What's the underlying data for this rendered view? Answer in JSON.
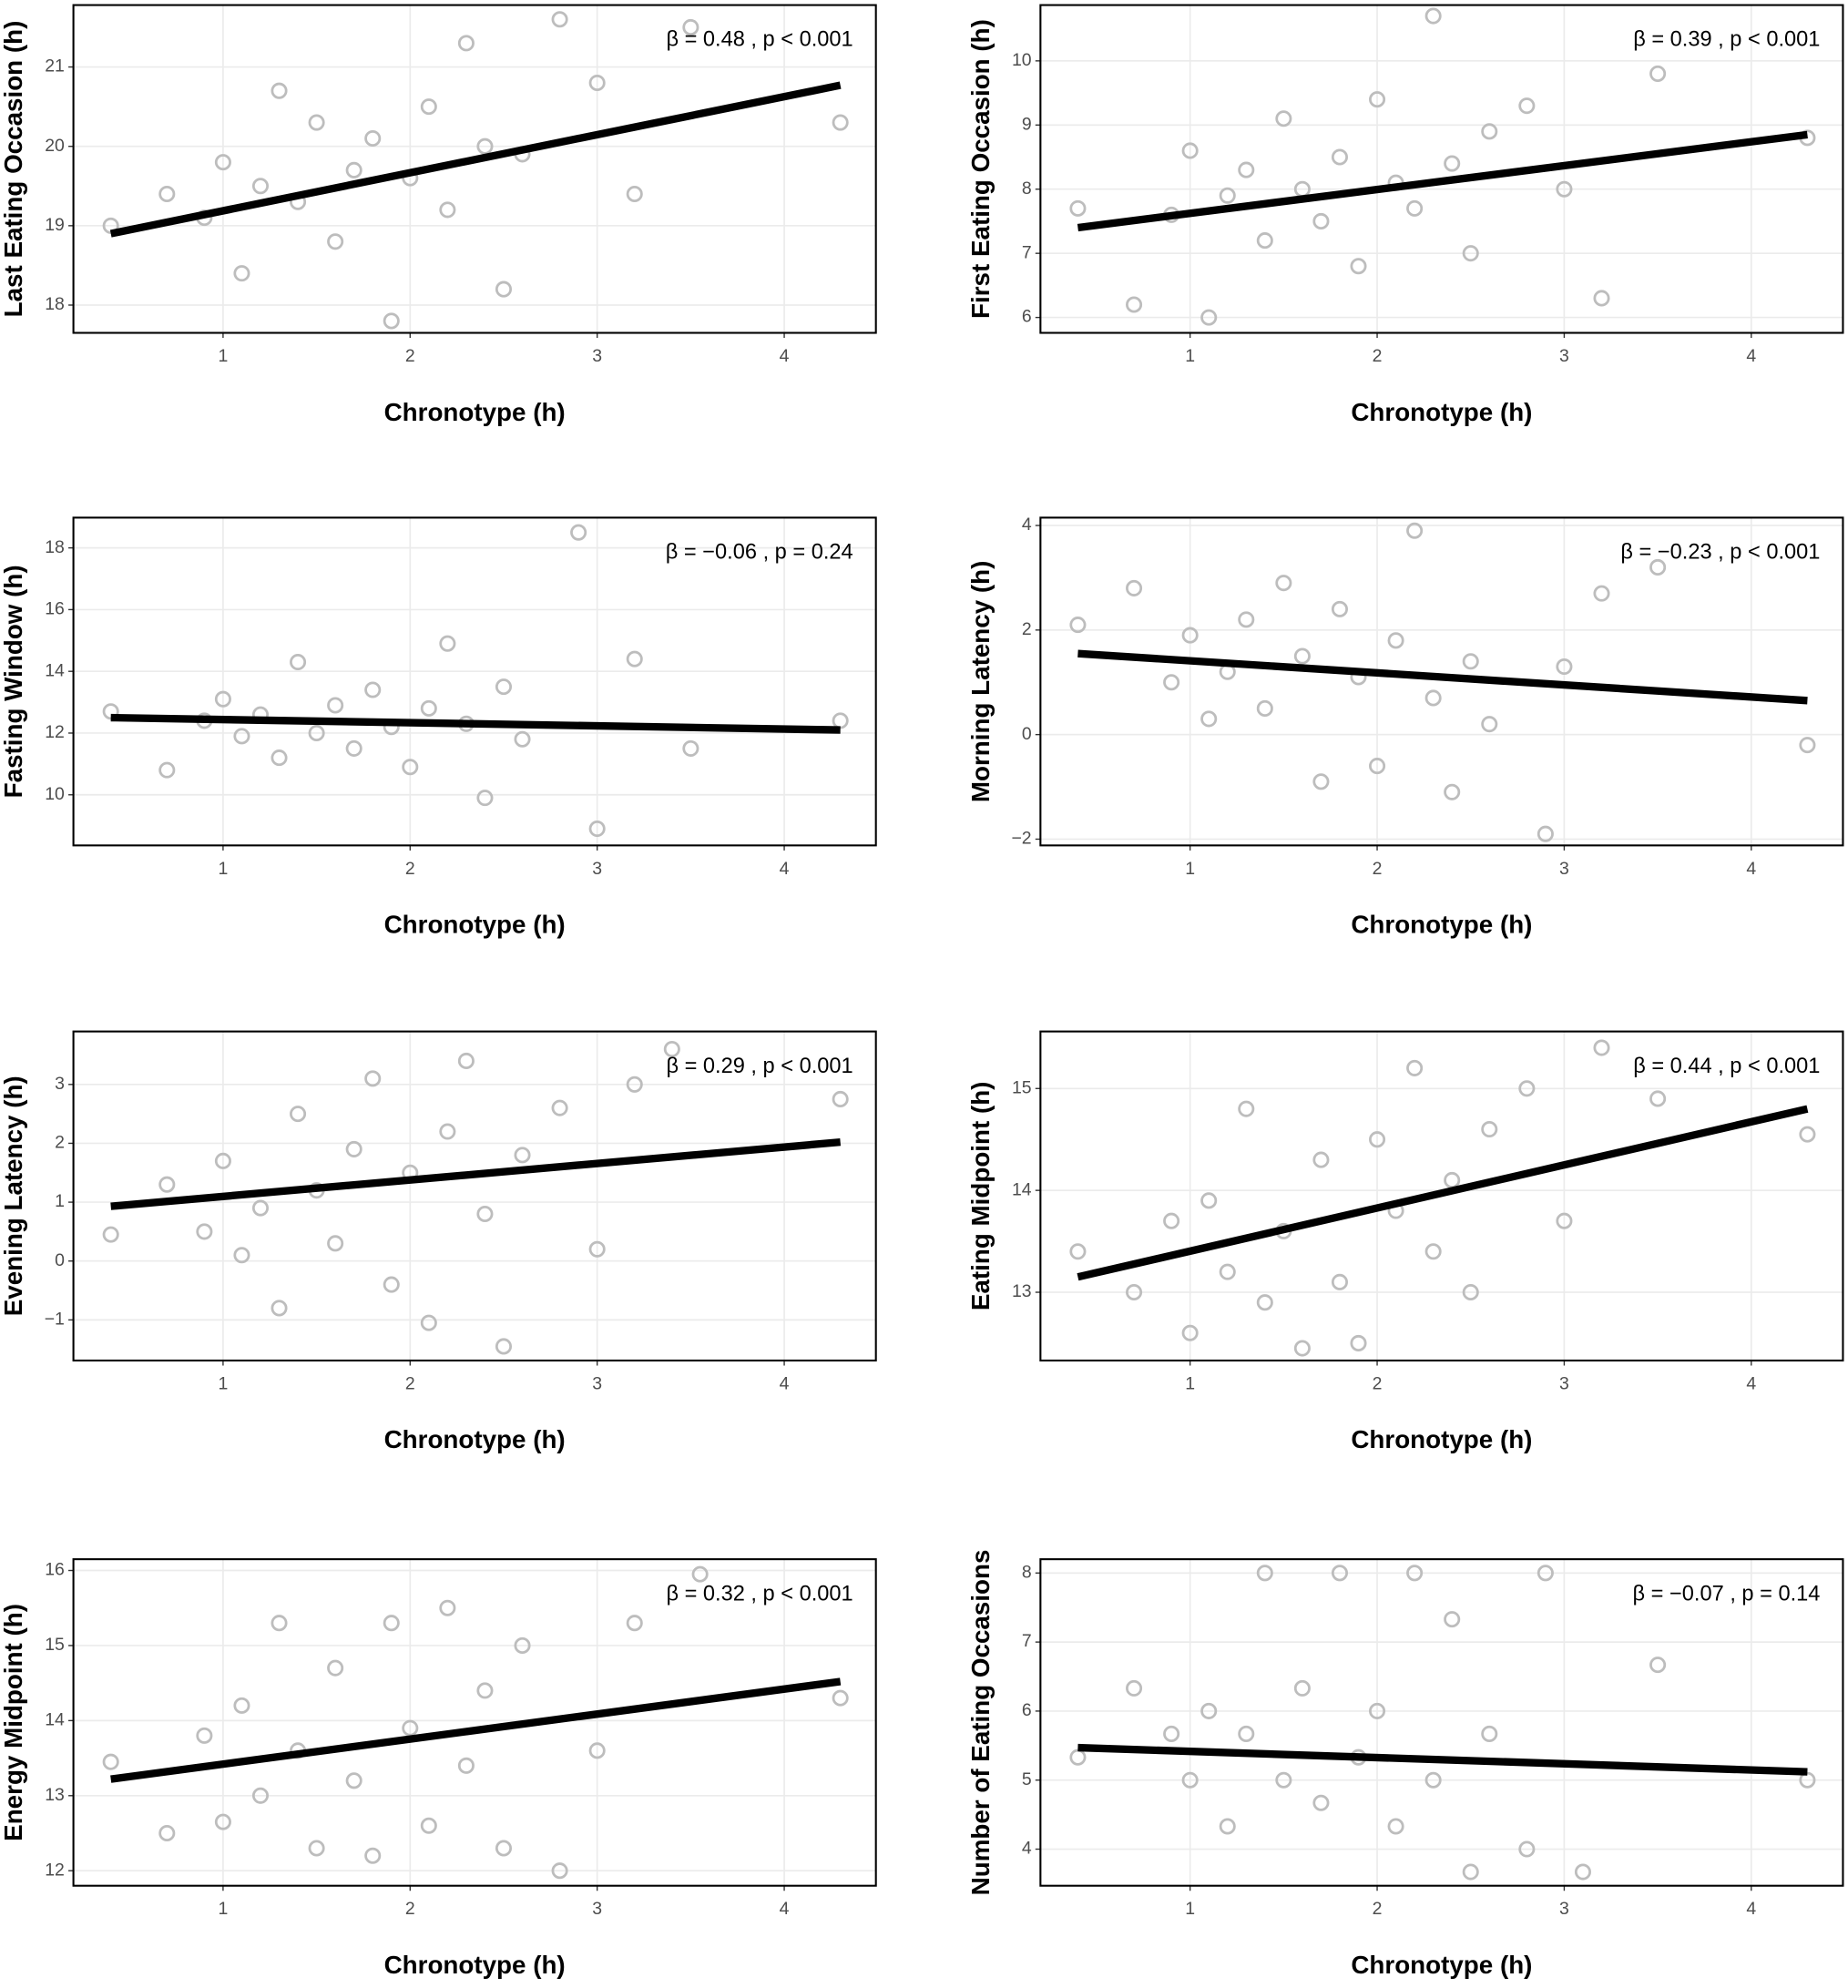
{
  "chart_data": [
    {
      "type": "scatter",
      "y_label": "Last Eating Occasion (h)",
      "x_label": "Chronotype (h)",
      "annotation": "β = 0.48 , p < 0.001",
      "x": [
        0.4,
        0.7,
        0.9,
        1.0,
        1.1,
        1.2,
        1.3,
        1.4,
        1.5,
        1.6,
        1.7,
        1.8,
        1.9,
        2.0,
        2.1,
        2.2,
        2.3,
        2.4,
        2.5,
        2.6,
        2.8,
        3.0,
        3.2,
        3.5,
        4.3
      ],
      "y": [
        19.0,
        19.4,
        19.1,
        19.8,
        18.4,
        19.5,
        20.7,
        19.3,
        20.3,
        18.8,
        19.7,
        20.1,
        17.8,
        19.6,
        20.5,
        19.2,
        21.3,
        20.0,
        18.2,
        19.9,
        21.6,
        20.8,
        19.4,
        21.5,
        20.3
      ],
      "color": "#bdbdbd",
      "fit": {
        "x": [
          0.4,
          4.3
        ],
        "y": [
          18.9,
          20.77
        ],
        "color": "#000000"
      },
      "xlim": [
        0.2,
        4.49
      ],
      "ylim": [
        17.65,
        21.78
      ],
      "xticks": [
        1,
        2,
        3,
        4
      ],
      "yticks": [
        18,
        19,
        20,
        21
      ],
      "grid": true
    },
    {
      "type": "scatter",
      "y_label": "First Eating Occasion (h)",
      "x_label": "Chronotype (h)",
      "annotation": "β = 0.39 , p < 0.001",
      "x": [
        0.4,
        0.7,
        0.9,
        1.0,
        1.1,
        1.2,
        1.3,
        1.4,
        1.5,
        1.6,
        1.7,
        1.8,
        1.9,
        2.0,
        2.1,
        2.2,
        2.3,
        2.4,
        2.5,
        2.6,
        2.8,
        3.0,
        3.2,
        3.5,
        4.3
      ],
      "y": [
        7.7,
        6.2,
        7.6,
        8.6,
        6.0,
        7.9,
        8.3,
        7.2,
        9.1,
        8.0,
        7.5,
        8.5,
        6.8,
        9.4,
        8.1,
        7.7,
        10.7,
        8.4,
        7.0,
        8.9,
        9.3,
        8.0,
        6.3,
        9.8,
        8.8
      ],
      "color": "#bdbdbd",
      "fit": {
        "x": [
          0.4,
          4.3
        ],
        "y": [
          7.4,
          8.85
        ],
        "color": "#000000"
      },
      "xlim": [
        0.2,
        4.49
      ],
      "ylim": [
        5.76,
        10.87
      ],
      "xticks": [
        1,
        2,
        3,
        4
      ],
      "yticks": [
        6,
        7,
        8,
        9,
        10
      ],
      "grid": true
    },
    {
      "type": "scatter",
      "y_label": "Fasting Window (h)",
      "x_label": "Chronotype (h)",
      "annotation": "β = −0.06 , p = 0.24",
      "x": [
        0.4,
        0.7,
        0.9,
        1.0,
        1.1,
        1.2,
        1.3,
        1.4,
        1.5,
        1.6,
        1.7,
        1.8,
        1.9,
        2.0,
        2.1,
        2.2,
        2.3,
        2.4,
        2.5,
        2.6,
        2.9,
        3.0,
        3.2,
        3.5,
        4.3
      ],
      "y": [
        12.7,
        10.8,
        12.4,
        13.1,
        11.9,
        12.6,
        11.2,
        14.3,
        12.0,
        12.9,
        11.5,
        13.4,
        12.2,
        10.9,
        12.8,
        14.9,
        12.3,
        9.9,
        13.5,
        11.8,
        18.5,
        8.9,
        14.4,
        11.5,
        12.4
      ],
      "color": "#bdbdbd",
      "fit": {
        "x": [
          0.4,
          4.3
        ],
        "y": [
          12.5,
          12.1
        ],
        "color": "#000000"
      },
      "xlim": [
        0.2,
        4.49
      ],
      "ylim": [
        8.36,
        18.98
      ],
      "xticks": [
        1,
        2,
        3,
        4
      ],
      "yticks": [
        10,
        12,
        14,
        16,
        18
      ],
      "grid": true
    },
    {
      "type": "scatter",
      "y_label": "Morning Latency (h)",
      "x_label": "Chronotype (h)",
      "annotation": "β = −0.23 , p < 0.001",
      "x": [
        0.4,
        0.7,
        0.9,
        1.0,
        1.1,
        1.2,
        1.3,
        1.4,
        1.5,
        1.6,
        1.7,
        1.8,
        1.9,
        2.0,
        2.1,
        2.2,
        2.3,
        2.4,
        2.5,
        2.6,
        2.9,
        3.0,
        3.2,
        3.5,
        4.3
      ],
      "y": [
        2.1,
        2.8,
        1.0,
        1.9,
        0.3,
        1.2,
        2.2,
        0.5,
        2.9,
        1.5,
        -0.9,
        2.4,
        1.1,
        -0.6,
        1.8,
        3.9,
        0.7,
        -1.1,
        1.4,
        0.2,
        -1.9,
        1.3,
        2.7,
        3.2,
        -0.2
      ],
      "color": "#bdbdbd",
      "fit": {
        "x": [
          0.4,
          4.3
        ],
        "y": [
          1.55,
          0.65
        ],
        "color": "#000000"
      },
      "xlim": [
        0.2,
        4.49
      ],
      "ylim": [
        -2.12,
        4.15
      ],
      "xticks": [
        1,
        2,
        3,
        4
      ],
      "yticks": [
        {
          "value": -2,
          "label": "−2"
        },
        0,
        2,
        4
      ],
      "grid": true
    },
    {
      "type": "scatter",
      "y_label": "Evening Latency (h)",
      "x_label": "Chronotype (h)",
      "annotation": "β = 0.29 , p < 0.001",
      "x": [
        0.4,
        0.7,
        0.9,
        1.0,
        1.1,
        1.2,
        1.3,
        1.4,
        1.5,
        1.6,
        1.7,
        1.8,
        1.9,
        2.0,
        2.1,
        2.2,
        2.3,
        2.4,
        2.5,
        2.6,
        2.8,
        3.0,
        3.2,
        3.4,
        4.3
      ],
      "y": [
        0.45,
        1.3,
        0.5,
        1.7,
        0.1,
        0.9,
        -0.8,
        2.5,
        1.2,
        0.3,
        1.9,
        3.1,
        -0.4,
        1.5,
        -1.05,
        2.2,
        3.4,
        0.8,
        -1.45,
        1.8,
        2.6,
        0.2,
        3.0,
        3.6,
        2.75
      ],
      "color": "#bdbdbd",
      "fit": {
        "x": [
          0.4,
          4.3
        ],
        "y": [
          0.93,
          2.02
        ],
        "color": "#000000"
      },
      "xlim": [
        0.2,
        4.49
      ],
      "ylim": [
        -1.69,
        3.9
      ],
      "xticks": [
        1,
        2,
        3,
        4
      ],
      "yticks": [
        {
          "value": -1,
          "label": "−1"
        },
        0,
        1,
        2,
        3
      ],
      "grid": true
    },
    {
      "type": "scatter",
      "y_label": "Eating Midpoint (h)",
      "x_label": "Chronotype (h)",
      "annotation": "β = 0.44 , p < 0.001",
      "x": [
        0.4,
        0.7,
        0.9,
        1.0,
        1.1,
        1.2,
        1.3,
        1.4,
        1.5,
        1.6,
        1.7,
        1.8,
        1.9,
        2.0,
        2.1,
        2.2,
        2.3,
        2.4,
        2.5,
        2.6,
        2.8,
        3.0,
        3.2,
        3.5,
        4.3
      ],
      "y": [
        13.4,
        13.0,
        13.7,
        12.6,
        13.9,
        13.2,
        14.8,
        12.9,
        13.6,
        12.45,
        14.3,
        13.1,
        12.5,
        14.5,
        13.8,
        15.2,
        13.4,
        14.1,
        13.0,
        14.6,
        15.0,
        13.7,
        15.4,
        14.9,
        14.55
      ],
      "color": "#bdbdbd",
      "fit": {
        "x": [
          0.4,
          4.3
        ],
        "y": [
          13.15,
          14.8
        ],
        "color": "#000000"
      },
      "xlim": [
        0.2,
        4.49
      ],
      "ylim": [
        12.33,
        15.56
      ],
      "xticks": [
        1,
        2,
        3,
        4
      ],
      "yticks": [
        13,
        14,
        15
      ],
      "grid": true
    },
    {
      "type": "scatter",
      "y_label": "Energy Midpoint (h)",
      "x_label": "Chronotype (h)",
      "annotation": "β = 0.32 , p < 0.001",
      "x": [
        0.4,
        0.7,
        0.9,
        1.0,
        1.1,
        1.2,
        1.3,
        1.4,
        1.5,
        1.6,
        1.7,
        1.8,
        1.9,
        2.0,
        2.1,
        2.2,
        2.3,
        2.4,
        2.5,
        2.6,
        2.8,
        3.0,
        3.2,
        3.55,
        4.3
      ],
      "y": [
        13.45,
        12.5,
        13.8,
        12.65,
        14.2,
        13.0,
        15.3,
        13.6,
        12.3,
        14.7,
        13.2,
        12.2,
        15.3,
        13.9,
        12.6,
        15.5,
        13.4,
        14.4,
        12.3,
        15.0,
        12.0,
        13.6,
        15.3,
        15.95,
        14.3
      ],
      "color": "#bdbdbd",
      "fit": {
        "x": [
          0.4,
          4.3
        ],
        "y": [
          13.22,
          14.52
        ],
        "color": "#000000"
      },
      "xlim": [
        0.2,
        4.49
      ],
      "ylim": [
        11.8,
        16.15
      ],
      "xticks": [
        1,
        2,
        3,
        4
      ],
      "yticks": [
        12,
        13,
        14,
        15,
        16
      ],
      "grid": true
    },
    {
      "type": "scatter",
      "y_label": "Number of Eating Occasions",
      "x_label": "Chronotype (h)",
      "annotation": "β = −0.07 , p = 0.14",
      "x": [
        0.4,
        0.7,
        0.9,
        1.0,
        1.1,
        1.2,
        1.3,
        1.4,
        1.5,
        1.6,
        1.7,
        1.8,
        1.9,
        2.0,
        2.1,
        2.2,
        2.3,
        2.4,
        2.5,
        2.6,
        2.8,
        2.9,
        3.1,
        3.5,
        4.3
      ],
      "y": [
        5.33,
        6.33,
        5.67,
        5.0,
        6.0,
        4.33,
        5.67,
        8.0,
        5.0,
        6.33,
        4.67,
        8.0,
        5.33,
        6.0,
        4.33,
        8.0,
        5.0,
        7.33,
        3.67,
        5.67,
        4.0,
        8.0,
        3.67,
        6.67,
        5.0
      ],
      "color": "#bdbdbd",
      "fit": {
        "x": [
          0.4,
          4.3
        ],
        "y": [
          5.47,
          5.12
        ],
        "color": "#000000"
      },
      "xlim": [
        0.2,
        4.49
      ],
      "ylim": [
        3.47,
        8.2
      ],
      "xticks": [
        1,
        2,
        3,
        4
      ],
      "yticks": [
        4,
        5,
        6,
        7,
        8
      ],
      "grid": true
    }
  ]
}
